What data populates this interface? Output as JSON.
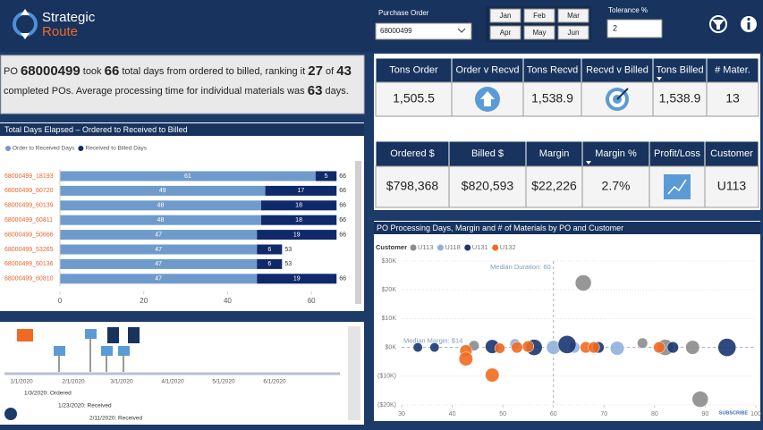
{
  "header": {
    "logo_top": "Strategic",
    "logo_bottom": "Route",
    "po_label": "Purchase Order",
    "po_value": "68000499",
    "months": [
      "Jan",
      "Feb",
      "Mar",
      "Apr",
      "May",
      "Jun"
    ],
    "tolerance_label": "Tolerance %",
    "tolerance_value": "2"
  },
  "summary": {
    "line1": [
      "PO ",
      "68000499",
      " took ",
      "66",
      " total days from ordered to billed, ranking it ",
      "27",
      " of ",
      "43"
    ],
    "line2": [
      "completed POs. Average processing time for individual materials was ",
      "63",
      " days."
    ]
  },
  "tables": [
    {
      "headers": [
        "Tons Order",
        "Order v Recvd",
        "Tons Recvd",
        "Recvd v Billed",
        "Tons Billed",
        "# Mater."
      ],
      "cells": [
        "1,505.5",
        null,
        "1,538.9",
        null,
        "1,538.9",
        "13"
      ]
    },
    {
      "headers": [
        "Ordered $",
        "Billed $",
        "Margin",
        "Margin %",
        "Profit/Loss",
        "Customer"
      ],
      "cells": [
        "$798,368",
        "$820,593",
        "$22,226",
        "2.7%",
        null,
        "U113"
      ]
    }
  ],
  "chart_data": [
    {
      "type": "bar",
      "horizontal": true,
      "stacked": true,
      "title": "Total Days Elapsed – Ordered to Received to Billed",
      "categories": [
        "68000499_18193",
        "68000499_60720",
        "68000499_60139",
        "68000499_60811",
        "68000499_50666",
        "68000499_53265",
        "68000499_60136",
        "68000499_60810"
      ],
      "series": [
        {
          "name": "Order to Received Days",
          "color": "#6f9bcc",
          "values": [
            61,
            49,
            48,
            48,
            47,
            47,
            47,
            47
          ]
        },
        {
          "name": "Received to Billed Days",
          "color": "#10296b",
          "values": [
            5,
            17,
            18,
            18,
            19,
            6,
            6,
            19
          ]
        }
      ],
      "totals": [
        66,
        66,
        66,
        66,
        66,
        53,
        53,
        66
      ],
      "xlim": [
        0,
        70
      ],
      "xticks": [
        0,
        20,
        40,
        60
      ],
      "grid": false,
      "legend": "top-left"
    },
    {
      "type": "scatter",
      "title": "PO Processing Days, Margin and # of Materials by PO and Customer",
      "legend_title": "Customer",
      "legend": "top-left",
      "grid": true,
      "series": [
        {
          "name": "U113",
          "color": "#8c8c8c",
          "x": [
            65.9,
            89,
            44.3,
            77.6,
            82.1,
            87.5
          ],
          "y": [
            22400,
            -18000,
            600,
            1500,
            0,
            0
          ],
          "size": [
            12,
            12,
            5,
            5,
            12,
            9
          ]
        },
        {
          "name": "U118",
          "color": "#8fb0dd",
          "x": [
            48.9,
            60,
            64.1,
            72.6,
            52.4
          ],
          "y": [
            0,
            0,
            0,
            -300,
            1200
          ],
          "size": [
            5,
            9,
            6,
            9,
            5
          ]
        },
        {
          "name": "U131",
          "color": "#1a3570",
          "x": [
            33.2,
            36.5,
            47.9,
            56.2,
            62.7,
            68.9,
            83.6,
            94.3
          ],
          "y": [
            0,
            0,
            300,
            0,
            1000,
            0,
            0,
            0
          ],
          "size": [
            4,
            4,
            9,
            12,
            15,
            6,
            6,
            15
          ]
        },
        {
          "name": "U132",
          "color": "#f26a21",
          "x": [
            42.7,
            42.7,
            47.9,
            52.8,
            55,
            49.4,
            66.4,
            68,
            80.9
          ],
          "y": [
            -1200,
            -4000,
            -9600,
            0,
            300,
            -300,
            0,
            0,
            0
          ],
          "size": [
            7,
            9,
            9,
            6,
            6,
            5,
            6,
            6,
            6
          ]
        }
      ],
      "xlim": [
        30,
        100
      ],
      "xticks": [
        30,
        40,
        50,
        60,
        70,
        80,
        90,
        100
      ],
      "ylim": [
        -20000,
        30000
      ],
      "yticks": [
        {
          "value": -20000,
          "label": "($20K)"
        },
        {
          "value": -10000,
          "label": "($10K)"
        },
        {
          "value": 0,
          "label": "$0K"
        },
        {
          "value": 10000,
          "label": "$10K"
        },
        {
          "value": 20000,
          "label": "$20K"
        },
        {
          "value": 30000,
          "label": "$30K"
        }
      ],
      "reference_lines": [
        {
          "axis": "x",
          "value": 60,
          "label": "Median Duration: 60"
        },
        {
          "axis": "y",
          "value": 14,
          "label": "Median Margin: $14"
        }
      ]
    }
  ],
  "timeline": {
    "dates": [
      "1/1/2020",
      "2/1/2020",
      "3/1/2020",
      "4/1/2020",
      "5/1/2020",
      "6/1/2020"
    ],
    "events": [
      "1/3/2020: Ordered",
      "1/23/2020: Received",
      "2/11/2020: Received"
    ]
  },
  "footer": {
    "subscribe": "SUBSCRIBE"
  }
}
